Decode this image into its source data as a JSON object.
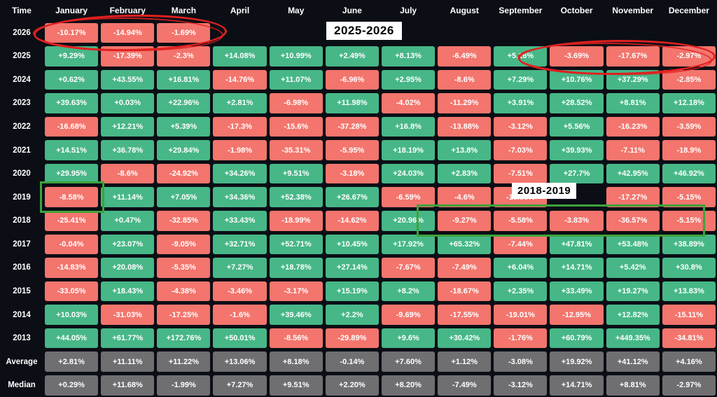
{
  "chart_data": {
    "type": "heatmap",
    "time_label": "Time",
    "columns": [
      "January",
      "February",
      "March",
      "April",
      "May",
      "June",
      "July",
      "August",
      "September",
      "October",
      "November",
      "December"
    ],
    "rows": [
      {
        "year": "2026",
        "values": [
          "-10.17%",
          "-14.94%",
          "-1.69%",
          "",
          "",
          "",
          "",
          "",
          "",
          "",
          "",
          ""
        ]
      },
      {
        "year": "2025",
        "values": [
          "+9.29%",
          "-17.39%",
          "-2.3%",
          "+14.08%",
          "+10.99%",
          "+2.49%",
          "+8.13%",
          "-6.49%",
          "+5.16%",
          "-3.69%",
          "-17.67%",
          "-2.97%"
        ]
      },
      {
        "year": "2024",
        "values": [
          "+0.62%",
          "+43.55%",
          "+16.81%",
          "-14.76%",
          "+11.07%",
          "-6.96%",
          "+2.95%",
          "-8.6%",
          "+7.29%",
          "+10.76%",
          "+37.29%",
          "-2.85%"
        ]
      },
      {
        "year": "2023",
        "values": [
          "+39.63%",
          "+0.03%",
          "+22.96%",
          "+2.81%",
          "-6.98%",
          "+11.98%",
          "-4.02%",
          "-11.29%",
          "+3.91%",
          "+28.52%",
          "+8.81%",
          "+12.18%"
        ]
      },
      {
        "year": "2022",
        "values": [
          "-16.68%",
          "+12.21%",
          "+5.39%",
          "-17.3%",
          "-15.6%",
          "-37.28%",
          "+16.8%",
          "-13.88%",
          "-3.12%",
          "+5.56%",
          "-16.23%",
          "-3.59%"
        ]
      },
      {
        "year": "2021",
        "values": [
          "+14.51%",
          "+36.78%",
          "+29.84%",
          "-1.98%",
          "-35.31%",
          "-5.95%",
          "+18.19%",
          "+13.8%",
          "-7.03%",
          "+39.93%",
          "-7.11%",
          "-18.9%"
        ]
      },
      {
        "year": "2020",
        "values": [
          "+29.95%",
          "-8.6%",
          "-24.92%",
          "+34.26%",
          "+9.51%",
          "-3.18%",
          "+24.03%",
          "+2.83%",
          "-7.51%",
          "+27.7%",
          "+42.95%",
          "+46.92%"
        ]
      },
      {
        "year": "2019",
        "values": [
          "-8.58%",
          "+11.14%",
          "+7.05%",
          "+34.36%",
          "+52.38%",
          "+26.67%",
          "-6.59%",
          "-4.6%",
          "-13.38%",
          "",
          "-17.27%",
          "-5.15%"
        ]
      },
      {
        "year": "2018",
        "values": [
          "-25.41%",
          "+0.47%",
          "-32.85%",
          "+33.43%",
          "-18.99%",
          "-14.62%",
          "+20.96%",
          "-9.27%",
          "-5.58%",
          "-3.83%",
          "-36.57%",
          "-5.15%"
        ]
      },
      {
        "year": "2017",
        "values": [
          "-0.04%",
          "+23.07%",
          "-9.05%",
          "+32.71%",
          "+52.71%",
          "+10.45%",
          "+17.92%",
          "+65.32%",
          "-7.44%",
          "+47.81%",
          "+53.48%",
          "+38.89%"
        ]
      },
      {
        "year": "2016",
        "values": [
          "-14.83%",
          "+20.08%",
          "-5.35%",
          "+7.27%",
          "+18.78%",
          "+27.14%",
          "-7.67%",
          "-7.49%",
          "+6.04%",
          "+14.71%",
          "+5.42%",
          "+30.8%"
        ]
      },
      {
        "year": "2015",
        "values": [
          "-33.05%",
          "+18.43%",
          "-4.38%",
          "-3.46%",
          "-3.17%",
          "+15.19%",
          "+8.2%",
          "-18.67%",
          "+2.35%",
          "+33.49%",
          "+19.27%",
          "+13.83%"
        ]
      },
      {
        "year": "2014",
        "values": [
          "+10.03%",
          "-31.03%",
          "-17.25%",
          "-1.6%",
          "+39.46%",
          "+2.2%",
          "-9.69%",
          "-17.55%",
          "-19.01%",
          "-12.95%",
          "+12.82%",
          "-15.11%"
        ]
      },
      {
        "year": "2013",
        "values": [
          "+44.05%",
          "+61.77%",
          "+172.76%",
          "+50.01%",
          "-8.56%",
          "-29.89%",
          "+9.6%",
          "+30.42%",
          "-1.76%",
          "+60.79%",
          "+449.35%",
          "-34.81%"
        ]
      },
      {
        "year": "Average",
        "style": "summary",
        "values": [
          "+2.81%",
          "+11.11%",
          "+11.22%",
          "+13.06%",
          "+8.18%",
          "-0.14%",
          "+7.60%",
          "+1.12%",
          "-3.08%",
          "+19.92%",
          "+41.12%",
          "+4.16%"
        ]
      },
      {
        "year": "Median",
        "style": "summary",
        "values": [
          "+0.29%",
          "+11.68%",
          "-1.99%",
          "+7.27%",
          "+9.51%",
          "+2.20%",
          "+8.20%",
          "-7.49%",
          "-3.12%",
          "+14.71%",
          "+8.81%",
          "-2.97%"
        ]
      }
    ],
    "colors": {
      "positive": "#47b787",
      "negative": "#f3756d",
      "summary": "#6f6f72",
      "background": "#0b0e15",
      "text": "#ffffff"
    },
    "legend_position": "none",
    "grid": false
  },
  "annotations": {
    "label_2025_2026": "2025-2026",
    "label_2018_2019": "2018-2019",
    "highlight_color_red": "#e02020",
    "highlight_color_green": "#3da33d"
  }
}
